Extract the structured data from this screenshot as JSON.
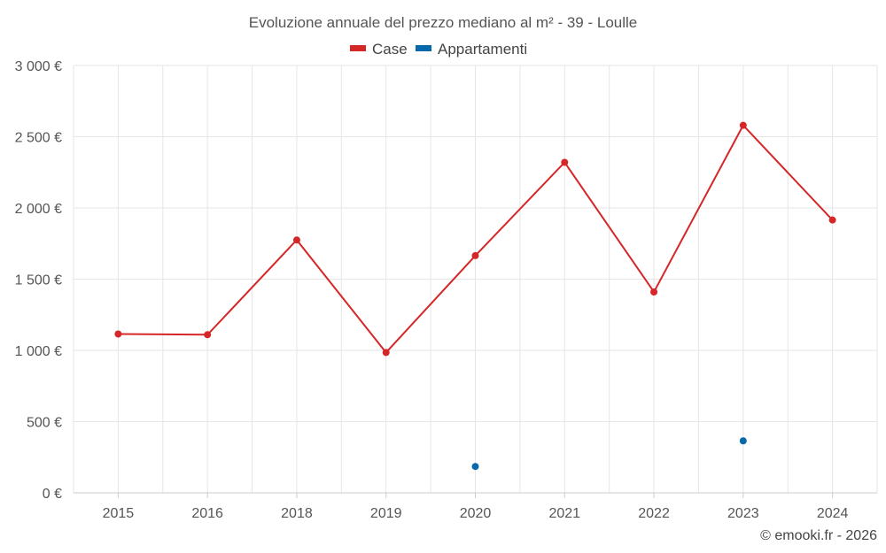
{
  "chart_data": {
    "type": "line",
    "title": "Evoluzione annuale del prezzo mediano al m² - 39 - Loulle",
    "categories": [
      "2015",
      "2016",
      "2018",
      "2019",
      "2020",
      "2021",
      "2022",
      "2023",
      "2024"
    ],
    "series": [
      {
        "name": "Case",
        "color": "#d62728",
        "values": [
          1115,
          1110,
          1775,
          985,
          1665,
          2320,
          1410,
          2580,
          1915
        ]
      },
      {
        "name": "Appartamenti",
        "color": "#0868ac",
        "values": [
          null,
          null,
          null,
          null,
          185,
          null,
          null,
          365,
          null
        ]
      }
    ],
    "ylim": [
      0,
      3000
    ],
    "yticks": [
      0,
      500,
      1000,
      1500,
      2000,
      2500,
      3000
    ],
    "ytick_labels": [
      "0 €",
      "500 €",
      "1 000 €",
      "1 500 €",
      "2 000 €",
      "2 500 €",
      "3 000 €"
    ],
    "legend_position": "top-center",
    "grid": true
  },
  "credit": "© emooki.fr - 2026"
}
